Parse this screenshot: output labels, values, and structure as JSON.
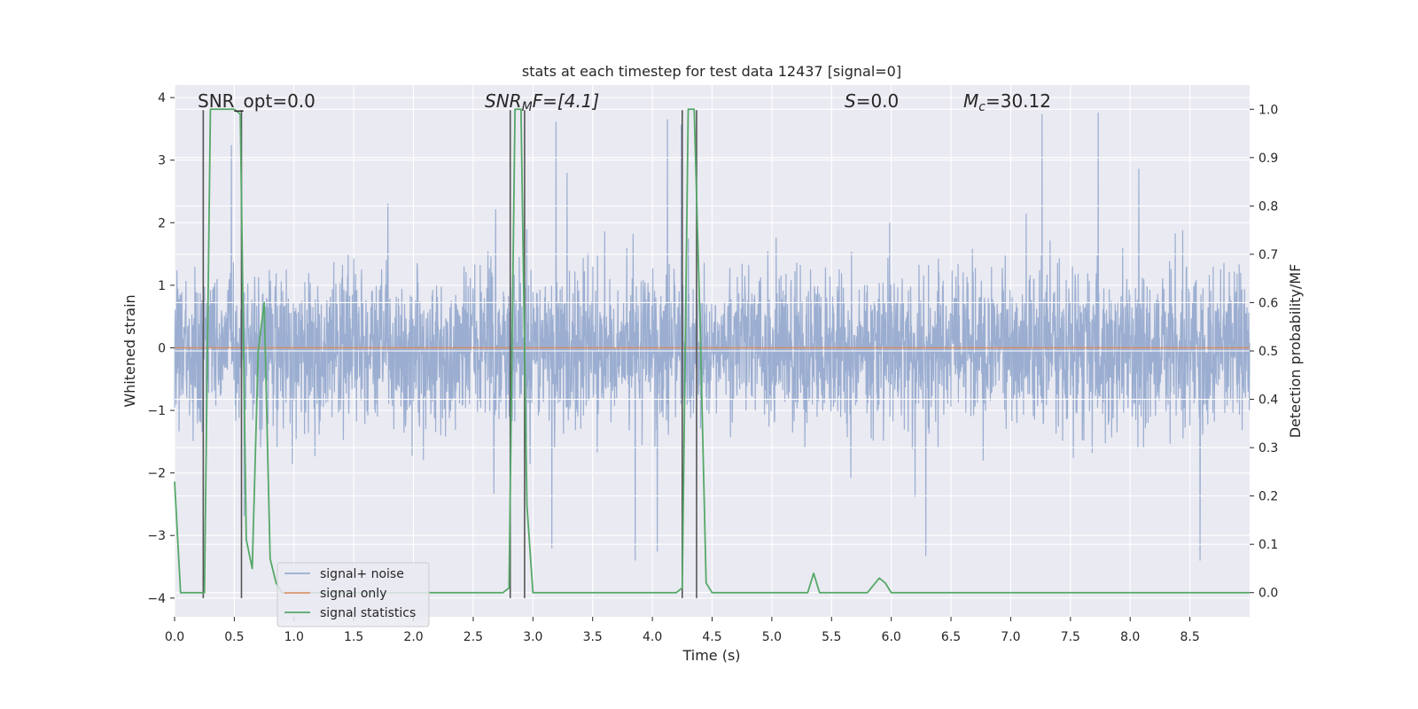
{
  "chart_data": {
    "type": "line",
    "title": "stats at each timestep for test data 12437 [signal=0]",
    "xlabel": "Time (s)",
    "ylabel": "Whitened strain",
    "y2label": "Detection probability/MF",
    "xlim": [
      0.0,
      9.0
    ],
    "ylim": [
      -4.3,
      4.2
    ],
    "y2lim": [
      -0.05,
      1.05
    ],
    "grid": true,
    "legend_placement": "lower-left",
    "x_ticks": [
      "0.0",
      "0.5",
      "1.0",
      "1.5",
      "2.0",
      "2.5",
      "3.0",
      "3.5",
      "4.0",
      "4.5",
      "5.0",
      "5.5",
      "6.0",
      "6.5",
      "7.0",
      "7.5",
      "8.0",
      "8.5"
    ],
    "y_ticks": [
      "−4",
      "−3",
      "−2",
      "−1",
      "0",
      "1",
      "2",
      "3",
      "4"
    ],
    "y2_ticks": [
      "0.0",
      "0.1",
      "0.2",
      "0.3",
      "0.4",
      "0.5",
      "0.6",
      "0.7",
      "0.8",
      "0.9",
      "1.0"
    ],
    "annotations": {
      "snr_opt": "SNR_opt=0.0",
      "snr_mf_main": "SNR",
      "snr_mf_sub": "M",
      "snr_mf_rest": "F=[4.1]",
      "s_main": "S",
      "s_rest": "=0.0",
      "mc_main": "M",
      "mc_sub": "c",
      "mc_rest": "=30.12"
    },
    "series": [
      {
        "name": "signal+ noise",
        "color": "#4c72b0",
        "kind": "noise",
        "envelope": {
          "typical_abs": 1.6,
          "max": 3.8,
          "min": -3.4
        }
      },
      {
        "name": "signal only",
        "color": "#dd8452",
        "x": [
          0.0,
          9.0
        ],
        "y": [
          0.0,
          0.0
        ]
      },
      {
        "name": "signal statistics",
        "color": "#55a868",
        "axis": "right",
        "x": [
          0.0,
          0.05,
          0.1,
          0.15,
          0.2,
          0.25,
          0.3,
          0.35,
          0.4,
          0.45,
          0.5,
          0.55,
          0.6,
          0.65,
          0.7,
          0.75,
          0.8,
          0.85,
          0.9,
          0.95,
          1.0,
          1.1,
          1.2,
          1.5,
          1.8,
          2.0,
          2.1,
          2.2,
          2.3,
          2.5,
          2.7,
          2.75,
          2.8,
          2.85,
          2.9,
          2.95,
          3.0,
          3.05,
          3.1,
          3.2,
          3.5,
          3.8,
          4.0,
          4.1,
          4.2,
          4.25,
          4.3,
          4.35,
          4.4,
          4.45,
          4.5,
          4.55,
          4.6,
          4.7,
          5.0,
          5.3,
          5.35,
          5.4,
          5.45,
          5.5,
          5.8,
          5.9,
          5.95,
          6.0,
          6.05,
          6.1,
          6.5,
          7.0,
          8.0,
          9.0
        ],
        "y": [
          0.23,
          0.0,
          0.0,
          0.0,
          0.0,
          0.0,
          1.0,
          1.0,
          1.0,
          1.0,
          1.0,
          0.99,
          0.11,
          0.05,
          0.5,
          0.6,
          0.07,
          0.02,
          0.0,
          0.0,
          0.0,
          0.0,
          0.0,
          0.0,
          0.0,
          0.0,
          0.0,
          0.0,
          0.0,
          0.0,
          0.0,
          0.0,
          0.01,
          1.0,
          1.0,
          0.18,
          0.0,
          0.0,
          0.0,
          0.0,
          0.0,
          0.0,
          0.0,
          0.0,
          0.0,
          0.01,
          1.0,
          1.0,
          0.55,
          0.02,
          0.0,
          0.0,
          0.0,
          0.0,
          0.0,
          0.0,
          0.04,
          0.0,
          0.0,
          0.0,
          0.0,
          0.03,
          0.02,
          0.0,
          0.0,
          0.0,
          0.0,
          0.0,
          0.0,
          0.0
        ]
      }
    ],
    "vertical_markers": [
      {
        "x": 0.24,
        "y_top": 3.8,
        "y_bottom": -4.0
      },
      {
        "x": 0.56,
        "y_top": 3.8,
        "y_bottom": -4.0
      },
      {
        "x": 2.81,
        "y_top": 3.8,
        "y_bottom": -4.0
      },
      {
        "x": 2.93,
        "y_top": 3.8,
        "y_bottom": -4.0
      },
      {
        "x": 4.25,
        "y_top": 3.8,
        "y_bottom": -4.0
      },
      {
        "x": 4.37,
        "y_top": 3.8,
        "y_bottom": -4.0
      }
    ],
    "right_axis_hgrid": [
      0.0,
      0.1,
      0.2,
      0.3,
      0.4,
      0.5,
      0.6,
      0.7,
      0.8,
      0.9,
      1.0
    ]
  },
  "colors": {
    "axes_bg": "#eaeaf2",
    "grid": "#ffffff",
    "text": "#262626",
    "marker": "#555555"
  }
}
